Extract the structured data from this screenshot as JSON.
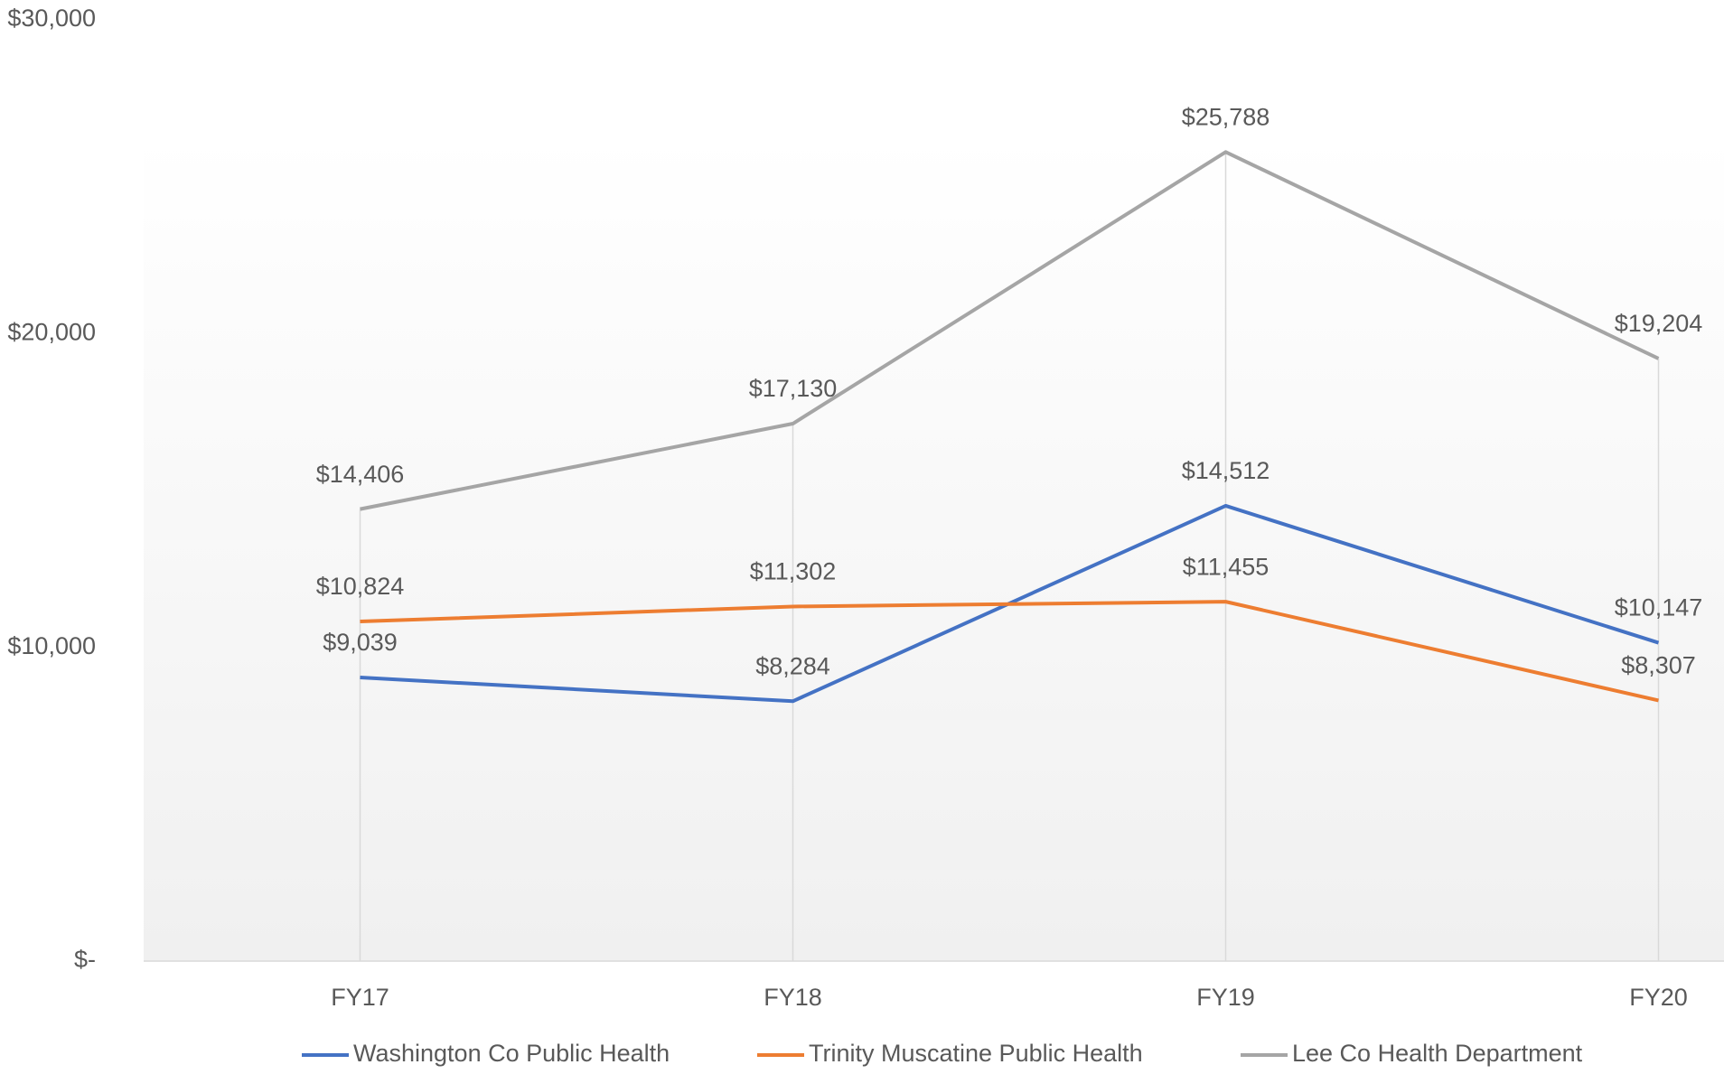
{
  "chart_data": {
    "type": "line",
    "categories": [
      "FY17",
      "FY18",
      "FY19",
      "FY20"
    ],
    "series": [
      {
        "name": "Washington Co Public Health",
        "color": "#4472c4",
        "values": [
          9039,
          8284,
          14512,
          10147
        ],
        "value_labels": [
          "$9,039",
          "$8,284",
          "$14,512",
          "$10,147"
        ]
      },
      {
        "name": "Trinity Muscatine Public Health",
        "color": "#ed7d31",
        "values": [
          10824,
          11302,
          11455,
          8307
        ],
        "value_labels": [
          "$10,824",
          "$11,302",
          "$11,455",
          "$8,307"
        ]
      },
      {
        "name": "Lee Co Health Department",
        "color": "#a5a5a5",
        "values": [
          14406,
          17130,
          25788,
          19204
        ],
        "value_labels": [
          "$14,406",
          "$17,130",
          "$25,788",
          "$19,204"
        ]
      }
    ],
    "ylim": [
      0,
      30000
    ],
    "yticks": [
      {
        "value": 0,
        "label": "$-"
      },
      {
        "value": 10000,
        "label": "$10,000"
      },
      {
        "value": 20000,
        "label": "$20,000"
      },
      {
        "value": 30000,
        "label": "$30,000"
      }
    ],
    "grid": false,
    "legend": "bottom"
  }
}
